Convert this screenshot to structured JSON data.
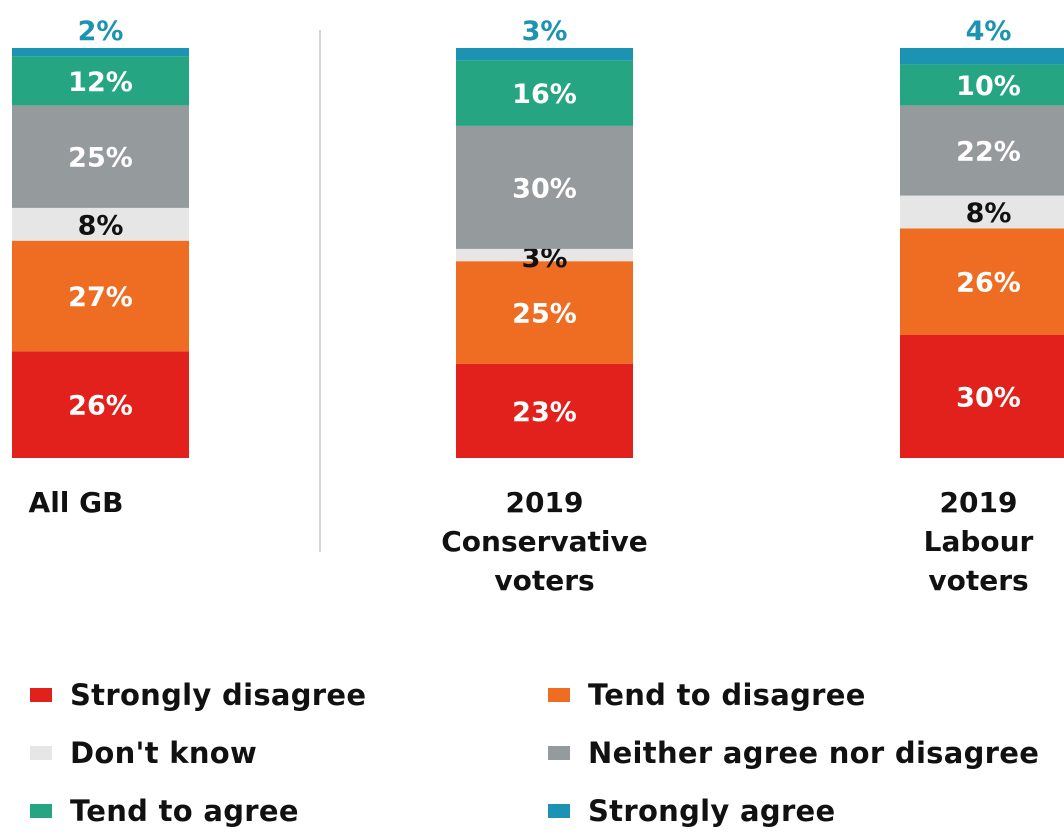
{
  "chart_data": {
    "type": "bar",
    "stacked": true,
    "categories": [
      [
        "All GB"
      ],
      [
        "2019",
        "Conservative",
        "voters"
      ],
      [
        "2019",
        "Labour",
        "voters"
      ]
    ],
    "series": [
      {
        "name": "Strongly disagree",
        "color": "#e3211c",
        "values": [
          26,
          23,
          30
        ],
        "labels": [
          "26%",
          "23%",
          "30%"
        ]
      },
      {
        "name": "Tend to disagree",
        "color": "#ef6d22",
        "values": [
          27,
          25,
          26
        ],
        "labels": [
          "27%",
          "25%",
          "26%"
        ]
      },
      {
        "name": "Don't know",
        "color": "#e6e6e6",
        "values": [
          8,
          3,
          8
        ],
        "labels": [
          "8%",
          "3%",
          "8%"
        ]
      },
      {
        "name": "Neither agree nor disagree",
        "color": "#959a9c",
        "values": [
          25,
          30,
          22
        ],
        "labels": [
          "25%",
          "30%",
          "22%"
        ]
      },
      {
        "name": "Tend to agree",
        "color": "#25a582",
        "values": [
          12,
          16,
          10
        ],
        "labels": [
          "12%",
          "16%",
          "10%"
        ]
      },
      {
        "name": "Strongly agree",
        "color": "#1d93b3",
        "values": [
          2,
          3,
          4
        ],
        "labels": [
          "2%",
          "3%",
          "4%"
        ]
      }
    ],
    "legend_position": "bottom",
    "grid": false
  }
}
